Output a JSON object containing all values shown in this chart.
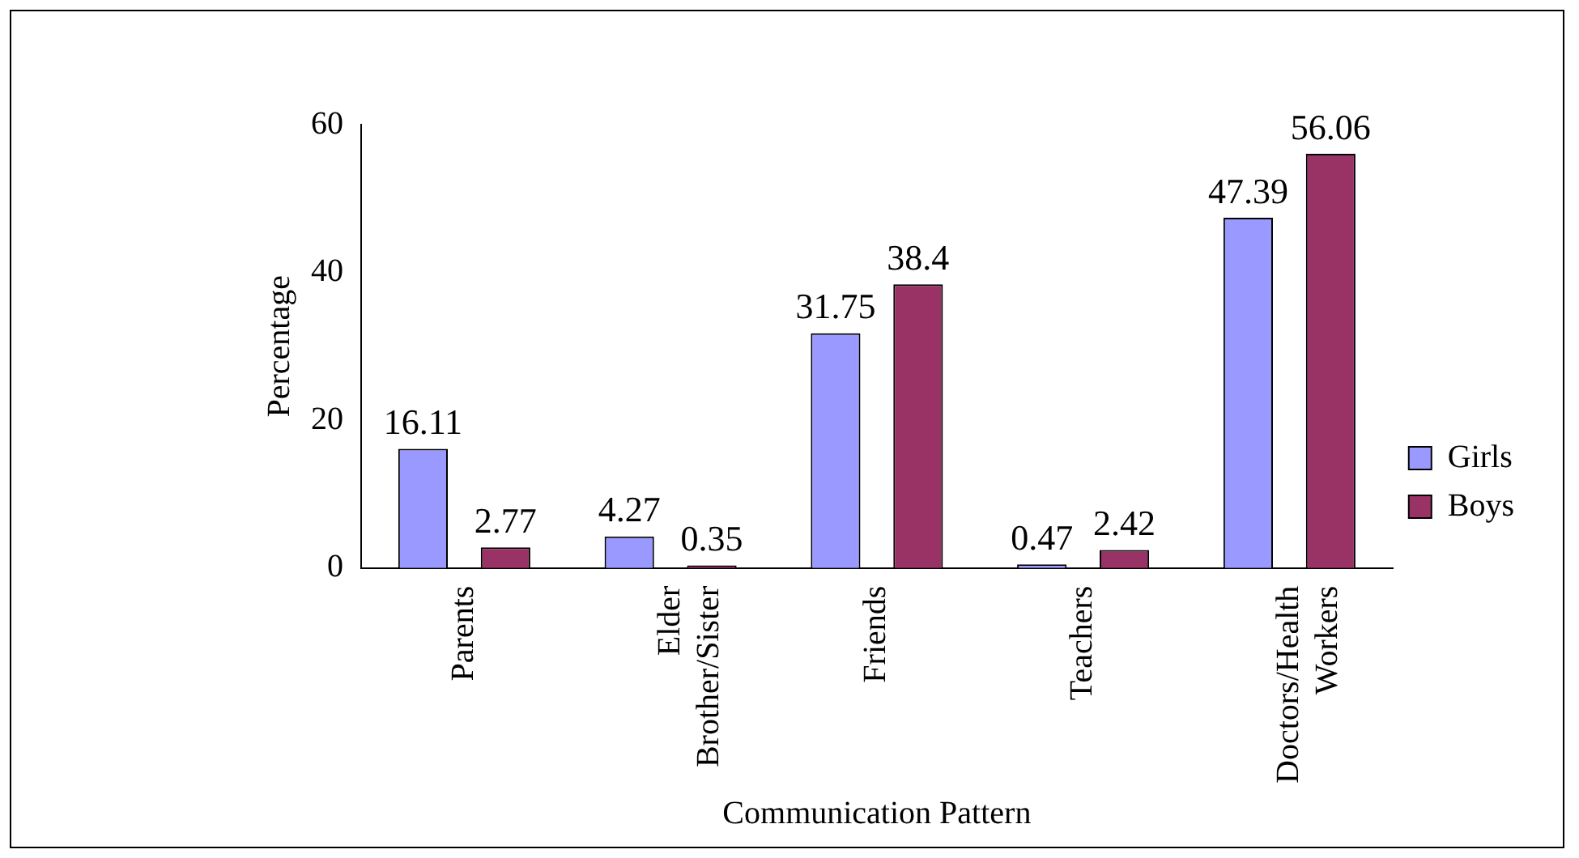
{
  "chart_data": {
    "type": "bar",
    "xlabel": "Communication Pattern",
    "ylabel": "Percentage",
    "categories": [
      "Parents",
      "Elder Brother/Sister",
      "Friends",
      "Teachers",
      "Doctors/Health Workers"
    ],
    "series": [
      {
        "name": "Girls",
        "color": "#9999ff",
        "values": [
          16.11,
          4.27,
          31.75,
          0.47,
          47.39
        ]
      },
      {
        "name": "Boys",
        "color": "#993366",
        "values": [
          2.77,
          0.35,
          38.4,
          2.42,
          56.06
        ]
      }
    ],
    "ylim": [
      0,
      60
    ],
    "yticks": [
      0,
      20,
      40,
      60
    ],
    "grid": false,
    "legend": "right",
    "data_labels": true
  }
}
